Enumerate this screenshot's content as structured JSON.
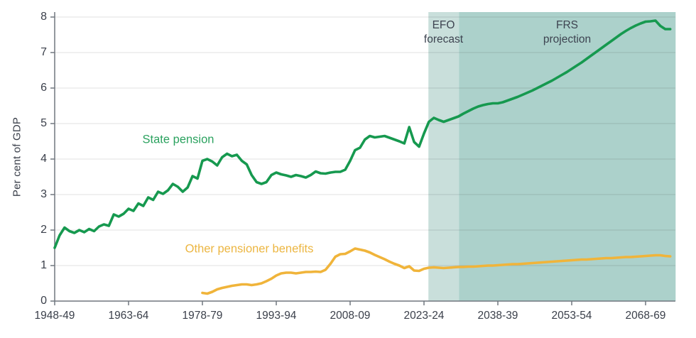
{
  "chart_data": {
    "type": "line",
    "title": "",
    "ylabel": "Per cent of GDP",
    "xlabel": "",
    "ylim": [
      0,
      8
    ],
    "grid": "horizontal",
    "legend": "inline-labels",
    "y_tick_labels": [
      "0",
      "1",
      "2",
      "3",
      "4",
      "5",
      "6",
      "7",
      "8"
    ],
    "x_tick_labels": [
      "1948-49",
      "1963-64",
      "1978-79",
      "1993-94",
      "2008-09",
      "2023-24",
      "2038-39",
      "2053-54",
      "2068-69"
    ],
    "x_tick_years": [
      1948,
      1963,
      1978,
      1993,
      2008,
      2023,
      2038,
      2053,
      2068
    ],
    "regions": [
      {
        "label": "EFO\nforecast",
        "start_year": 2023.9,
        "end_year": 2030.1,
        "color": "#c9dfdb"
      },
      {
        "label": "FRS\nprojection",
        "start_year": 2030.1,
        "end_year": 2074.1,
        "color": "#acd1cb"
      }
    ],
    "series": [
      {
        "name": "State pension",
        "color": "#16994f",
        "label_color": "#2ba25f",
        "start_year": 1948,
        "values": [
          1.5,
          1.85,
          2.07,
          1.97,
          1.92,
          2.0,
          1.94,
          2.03,
          1.97,
          2.1,
          2.16,
          2.12,
          2.44,
          2.38,
          2.46,
          2.6,
          2.54,
          2.75,
          2.68,
          2.92,
          2.85,
          3.08,
          3.02,
          3.12,
          3.3,
          3.22,
          3.08,
          3.2,
          3.52,
          3.45,
          3.95,
          4.0,
          3.93,
          3.82,
          4.05,
          4.15,
          4.08,
          4.12,
          3.95,
          3.85,
          3.55,
          3.35,
          3.3,
          3.35,
          3.55,
          3.62,
          3.57,
          3.54,
          3.5,
          3.55,
          3.52,
          3.48,
          3.55,
          3.65,
          3.6,
          3.59,
          3.62,
          3.64,
          3.64,
          3.7,
          3.95,
          4.25,
          4.32,
          4.55,
          4.65,
          4.61,
          4.63,
          4.65,
          4.6,
          4.55,
          4.5,
          4.44,
          4.9,
          4.48,
          4.35,
          4.72,
          5.05,
          5.16,
          5.1,
          5.05,
          5.1,
          5.15,
          5.2,
          5.28,
          5.35,
          5.42,
          5.48,
          5.52,
          5.55,
          5.57,
          5.57,
          5.6,
          5.65,
          5.7,
          5.75,
          5.81,
          5.87,
          5.93,
          6.0,
          6.07,
          6.14,
          6.21,
          6.29,
          6.37,
          6.45,
          6.54,
          6.63,
          6.72,
          6.82,
          6.92,
          7.02,
          7.12,
          7.22,
          7.32,
          7.42,
          7.52,
          7.61,
          7.69,
          7.76,
          7.82,
          7.87,
          7.88,
          7.9,
          7.75,
          7.66,
          7.66
        ]
      },
      {
        "name": "Other pensioner benefits",
        "color": "#f0b43a",
        "label_color": "#ecb642",
        "start_year": 1978,
        "values": [
          0.23,
          0.21,
          0.26,
          0.33,
          0.37,
          0.4,
          0.43,
          0.45,
          0.47,
          0.47,
          0.45,
          0.47,
          0.5,
          0.56,
          0.63,
          0.72,
          0.78,
          0.8,
          0.8,
          0.78,
          0.8,
          0.82,
          0.82,
          0.83,
          0.82,
          0.88,
          1.05,
          1.25,
          1.32,
          1.33,
          1.4,
          1.48,
          1.45,
          1.42,
          1.37,
          1.3,
          1.24,
          1.18,
          1.11,
          1.05,
          1.0,
          0.93,
          0.98,
          0.86,
          0.85,
          0.91,
          0.94,
          0.95,
          0.94,
          0.93,
          0.94,
          0.95,
          0.96,
          0.96,
          0.97,
          0.97,
          0.98,
          0.99,
          1.0,
          1.0,
          1.01,
          1.02,
          1.03,
          1.04,
          1.04,
          1.05,
          1.06,
          1.07,
          1.08,
          1.09,
          1.1,
          1.11,
          1.12,
          1.13,
          1.14,
          1.15,
          1.16,
          1.17,
          1.17,
          1.18,
          1.19,
          1.2,
          1.21,
          1.21,
          1.22,
          1.23,
          1.24,
          1.24,
          1.25,
          1.26,
          1.27,
          1.28,
          1.29,
          1.29,
          1.27,
          1.26
        ]
      }
    ],
    "colors": {
      "axis": "#70777f",
      "tick_label": "#3a3f4a",
      "annotation": "#3d4350",
      "gridline": "rgba(0,0,0,0.12)",
      "background": "#ffffff"
    }
  }
}
